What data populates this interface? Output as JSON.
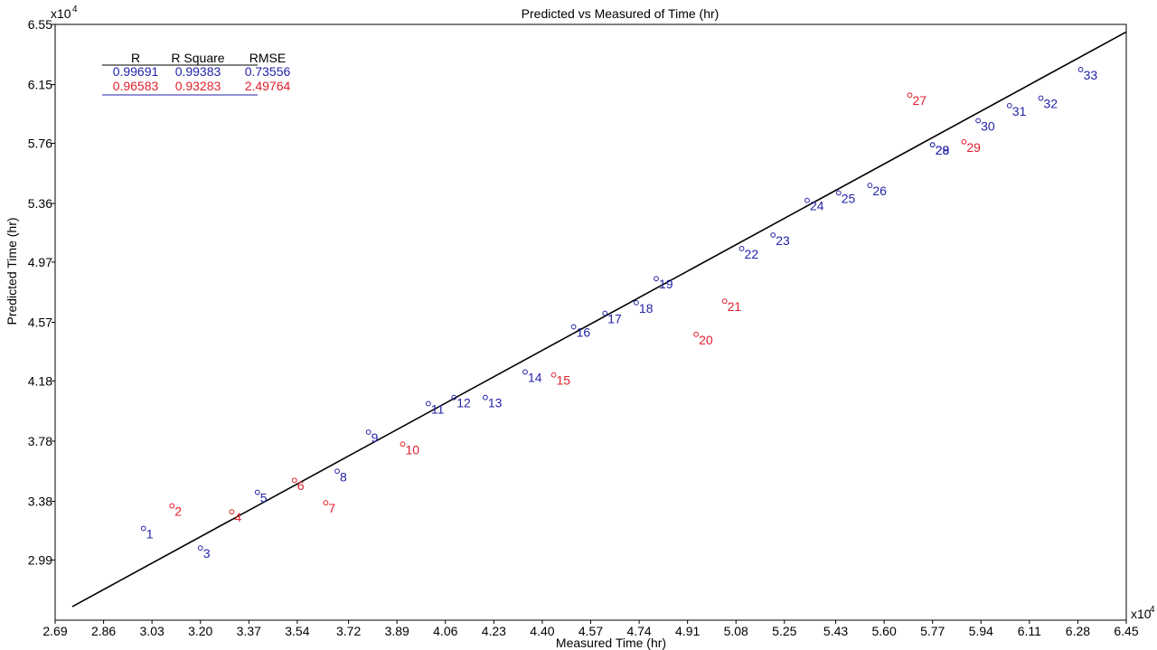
{
  "chart_data": {
    "type": "scatter",
    "title": "Predicted vs Measured of Time (hr)",
    "xlabel": "Measured Time (hr)",
    "ylabel": "Predicted Time (hr)",
    "x_exponent_label": "x10",
    "y_exponent_label": "x10",
    "xlim": [
      2.69,
      6.45
    ],
    "ylim": [
      2.59,
      6.55
    ],
    "x_ticks": [
      "2.69",
      "2.86",
      "3.03",
      "3.20",
      "3.37",
      "3.54",
      "3.72",
      "3.89",
      "4.06",
      "4.23",
      "4.40",
      "4.57",
      "4.74",
      "4.91",
      "5.08",
      "5.25",
      "5.43",
      "5.60",
      "5.77",
      "5.94",
      "6.11",
      "6.28",
      "6.45"
    ],
    "y_ticks": [
      "2.99",
      "3.38",
      "3.78",
      "4.18",
      "4.57",
      "4.97",
      "5.36",
      "5.76",
      "6.15",
      "6.55"
    ],
    "grid": false,
    "fit_line": {
      "x": [
        2.75,
        6.45
      ],
      "y": [
        2.68,
        6.5
      ]
    },
    "stats_table": {
      "headers": [
        "R",
        "R Square",
        "RMSE"
      ],
      "rows": [
        {
          "values": [
            "0.99691",
            "0.99383",
            "0.73556"
          ],
          "color": "#2323a8"
        },
        {
          "values": [
            "0.96583",
            "0.93283",
            "2.49764"
          ],
          "color": "#e0202c"
        }
      ]
    },
    "series": [
      {
        "color": "#2323a8",
        "points": [
          {
            "label": "1",
            "x": 3.0,
            "y": 3.2
          },
          {
            "label": "3",
            "x": 3.2,
            "y": 3.07
          },
          {
            "label": "5",
            "x": 3.4,
            "y": 3.44
          },
          {
            "label": "8",
            "x": 3.68,
            "y": 3.58
          },
          {
            "label": "9",
            "x": 3.79,
            "y": 3.84
          },
          {
            "label": "11",
            "x": 4.0,
            "y": 4.03
          },
          {
            "label": "12",
            "x": 4.09,
            "y": 4.07
          },
          {
            "label": "13",
            "x": 4.2,
            "y": 4.07
          },
          {
            "label": "14",
            "x": 4.34,
            "y": 4.24
          },
          {
            "label": "16",
            "x": 4.51,
            "y": 4.54
          },
          {
            "label": "17",
            "x": 4.62,
            "y": 4.63
          },
          {
            "label": "18",
            "x": 4.73,
            "y": 4.7
          },
          {
            "label": "19",
            "x": 4.8,
            "y": 4.86
          },
          {
            "label": "22",
            "x": 5.1,
            "y": 5.06
          },
          {
            "label": "23",
            "x": 5.21,
            "y": 5.15
          },
          {
            "label": "24",
            "x": 5.33,
            "y": 5.38
          },
          {
            "label": "25",
            "x": 5.44,
            "y": 5.43
          },
          {
            "label": "26",
            "x": 5.55,
            "y": 5.48
          },
          {
            "label": "28",
            "x": 5.77,
            "y": 5.75
          },
          {
            "label": "29",
            "x": 5.77,
            "y": 5.75
          },
          {
            "label": "30",
            "x": 5.93,
            "y": 5.91
          },
          {
            "label": "31",
            "x": 6.04,
            "y": 6.01
          },
          {
            "label": "32",
            "x": 6.15,
            "y": 6.06
          },
          {
            "label": "33",
            "x": 6.29,
            "y": 6.25
          }
        ]
      },
      {
        "color": "#e0202c",
        "points": [
          {
            "label": "2",
            "x": 3.1,
            "y": 3.35
          },
          {
            "label": "4",
            "x": 3.31,
            "y": 3.31
          },
          {
            "label": "6",
            "x": 3.53,
            "y": 3.52
          },
          {
            "label": "7",
            "x": 3.64,
            "y": 3.37
          },
          {
            "label": "10",
            "x": 3.91,
            "y": 3.76
          },
          {
            "label": "15",
            "x": 4.44,
            "y": 4.22
          },
          {
            "label": "20",
            "x": 4.94,
            "y": 4.49
          },
          {
            "label": "21",
            "x": 5.04,
            "y": 4.71
          },
          {
            "label": "27",
            "x": 5.69,
            "y": 6.08
          },
          {
            "label": "29",
            "x": 5.88,
            "y": 5.77
          }
        ]
      }
    ]
  }
}
